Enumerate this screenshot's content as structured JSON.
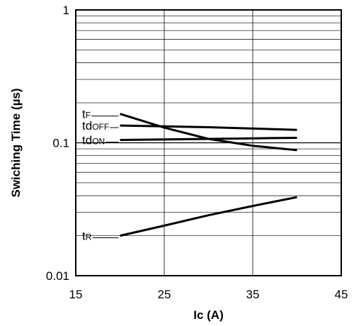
{
  "chart_data": {
    "type": "line",
    "title": "",
    "xlabel": "Ic (A)",
    "ylabel": "Swiching Time (µs)",
    "x_scale": "linear",
    "y_scale": "log",
    "xlim": [
      15,
      45
    ],
    "ylim": [
      0.01,
      1
    ],
    "x_ticks": [
      15,
      25,
      35,
      45
    ],
    "x_tick_labels": [
      "15",
      "25",
      "35",
      "45"
    ],
    "y_ticks": [
      0.01,
      0.1,
      1
    ],
    "y_tick_labels": [
      "0.01",
      "0.1",
      "1"
    ],
    "grid": true,
    "line_color": "#000000",
    "series": [
      {
        "name": "tF",
        "label_main": "t",
        "label_sub": "F",
        "points": [
          [
            20,
            0.165
          ],
          [
            25,
            0.13
          ],
          [
            30,
            0.107
          ],
          [
            35,
            0.095
          ],
          [
            40,
            0.088
          ]
        ]
      },
      {
        "name": "tdOFF",
        "label_main": "td",
        "label_sub": "OFF",
        "points": [
          [
            20,
            0.135
          ],
          [
            25,
            0.133
          ],
          [
            30,
            0.131
          ],
          [
            35,
            0.128
          ],
          [
            40,
            0.125
          ]
        ]
      },
      {
        "name": "tdON",
        "label_main": "td",
        "label_sub": "ON",
        "points": [
          [
            20,
            0.105
          ],
          [
            25,
            0.106
          ],
          [
            30,
            0.107
          ],
          [
            35,
            0.108
          ],
          [
            40,
            0.109
          ]
        ]
      },
      {
        "name": "tR",
        "label_main": "t",
        "label_sub": "R",
        "points": [
          [
            20,
            0.02
          ],
          [
            25,
            0.0238
          ],
          [
            30,
            0.0285
          ],
          [
            35,
            0.0335
          ],
          [
            40,
            0.039
          ]
        ]
      }
    ]
  }
}
